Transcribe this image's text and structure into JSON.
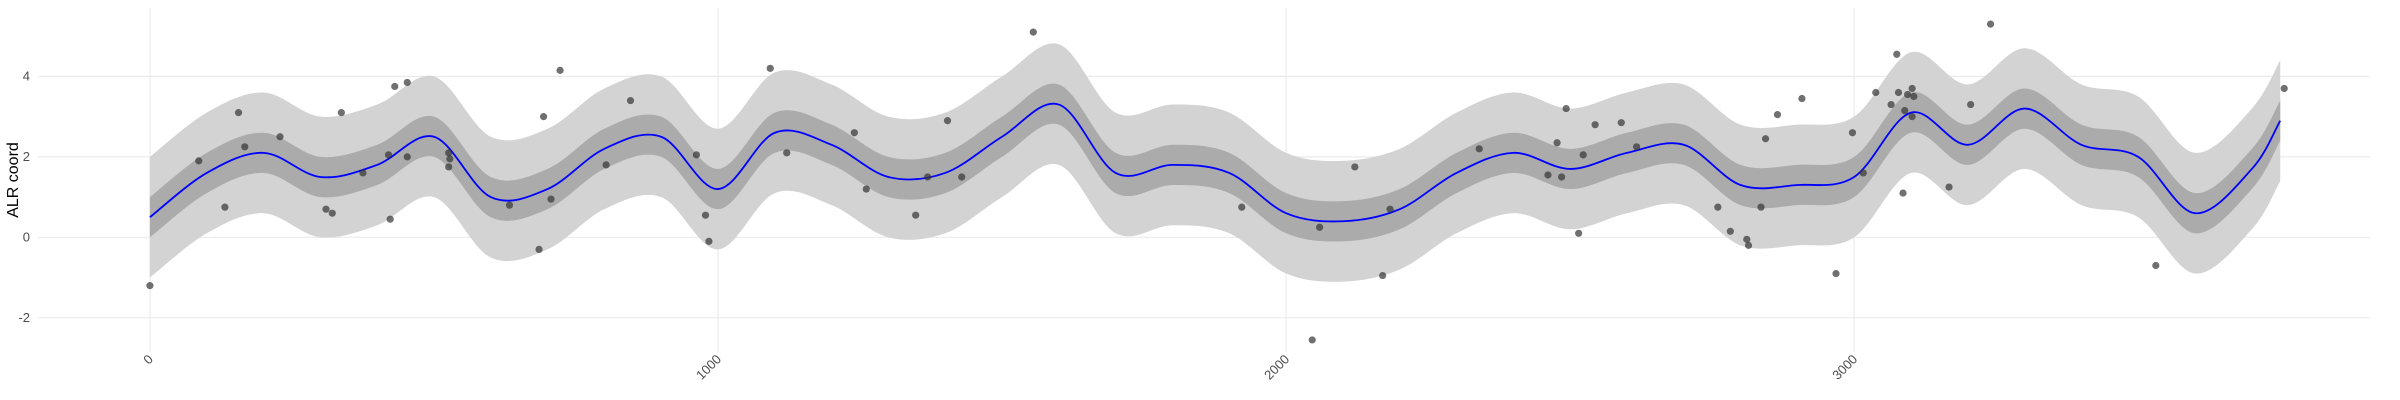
{
  "chart_data": {
    "type": "line",
    "y_label": "ALR coord",
    "x": [
      0,
      100,
      200,
      300,
      400,
      500,
      600,
      700,
      800,
      900,
      1000,
      1100,
      1200,
      1300,
      1400,
      1500,
      1600,
      1700,
      1800,
      1900,
      2000,
      2100,
      2200,
      2300,
      2400,
      2500,
      2600,
      2700,
      2800,
      2900,
      3000,
      3100,
      3200,
      3300,
      3400,
      3500,
      3600,
      3700,
      3750
    ],
    "line": {
      "color": "#0000ff",
      "values": [
        0.5,
        1.6,
        2.1,
        1.5,
        1.8,
        2.5,
        1.0,
        1.2,
        2.2,
        2.5,
        1.2,
        2.6,
        2.3,
        1.5,
        1.6,
        2.5,
        3.3,
        1.6,
        1.8,
        1.6,
        0.6,
        0.4,
        0.7,
        1.6,
        2.1,
        1.7,
        2.1,
        2.3,
        1.3,
        1.3,
        1.5,
        3.1,
        2.3,
        3.2,
        2.3,
        2.0,
        0.6,
        1.7,
        2.9
      ]
    },
    "bands": [
      {
        "color": "#d3d3d3",
        "lower": [
          -1.0,
          0.1,
          0.6,
          0.0,
          0.3,
          1.0,
          -0.5,
          -0.3,
          0.7,
          1.0,
          -0.3,
          1.1,
          0.8,
          0.0,
          0.1,
          1.0,
          1.8,
          0.1,
          0.3,
          0.1,
          -0.9,
          -1.1,
          -0.8,
          0.1,
          0.6,
          0.2,
          0.6,
          0.8,
          -0.2,
          -0.2,
          0.0,
          1.6,
          0.8,
          1.7,
          0.8,
          0.5,
          -0.9,
          0.2,
          1.4
        ],
        "upper": [
          2.0,
          3.1,
          3.6,
          3.0,
          3.3,
          4.0,
          2.5,
          2.7,
          3.7,
          4.0,
          2.7,
          4.1,
          3.8,
          3.0,
          3.1,
          4.0,
          4.8,
          3.1,
          3.3,
          3.1,
          2.1,
          1.9,
          2.2,
          3.1,
          3.6,
          3.2,
          3.6,
          3.8,
          2.8,
          2.8,
          3.0,
          4.6,
          3.8,
          4.7,
          3.8,
          3.5,
          2.1,
          3.2,
          4.4
        ]
      },
      {
        "color": "#ababab",
        "lower": [
          0.0,
          1.1,
          1.6,
          1.0,
          1.3,
          2.0,
          0.5,
          0.7,
          1.7,
          2.0,
          0.7,
          2.1,
          1.8,
          1.0,
          1.1,
          2.0,
          2.8,
          1.1,
          1.3,
          1.1,
          0.1,
          -0.1,
          0.2,
          1.1,
          1.6,
          1.2,
          1.6,
          1.8,
          0.8,
          0.8,
          1.0,
          2.6,
          1.8,
          2.7,
          1.8,
          1.5,
          0.1,
          1.2,
          2.4
        ],
        "upper": [
          1.0,
          2.1,
          2.6,
          2.0,
          2.3,
          3.0,
          1.5,
          1.7,
          2.7,
          3.0,
          1.7,
          3.1,
          2.8,
          2.0,
          2.1,
          3.0,
          3.8,
          2.1,
          2.3,
          2.1,
          1.1,
          0.9,
          1.2,
          2.1,
          2.6,
          2.2,
          2.6,
          2.8,
          1.8,
          1.8,
          2.0,
          3.6,
          2.8,
          3.7,
          2.8,
          2.5,
          1.1,
          2.2,
          3.4
        ]
      }
    ],
    "points": {
      "color": "#333333",
      "x": [
        0,
        86,
        132,
        156,
        167,
        229,
        310,
        321,
        337,
        375,
        420,
        423,
        431,
        453,
        453,
        526,
        528,
        526,
        633,
        685,
        693,
        706,
        722,
        803,
        846,
        962,
        978,
        984,
        1092,
        1121,
        1240,
        1261,
        1348,
        1369,
        1404,
        1429,
        1555,
        1922,
        2059,
        2046,
        2121,
        2170,
        2183,
        2340,
        2461,
        2477,
        2485,
        2493,
        2515,
        2523,
        2544,
        2590,
        2617,
        2760,
        2782,
        2811,
        2814,
        2836,
        2844,
        2865,
        2908,
        2968,
        2997,
        3016,
        3038,
        3065,
        3075,
        3078,
        3086,
        3089,
        3094,
        3102,
        3102,
        3105,
        3167,
        3205,
        3240,
        3531,
        3757
      ],
      "y": [
        -1.2,
        1.9,
        0.75,
        3.1,
        2.25,
        2.5,
        0.7,
        0.6,
        3.1,
        1.6,
        2.05,
        0.45,
        3.75,
        3.85,
        2.0,
        2.1,
        1.95,
        1.75,
        0.8,
        -0.3,
        3.0,
        0.95,
        4.15,
        1.8,
        3.4,
        2.05,
        0.55,
        -0.1,
        4.2,
        2.1,
        2.6,
        1.2,
        0.55,
        1.5,
        2.9,
        1.5,
        5.1,
        0.75,
        0.25,
        -2.55,
        1.75,
        -0.95,
        0.7,
        2.2,
        1.55,
        2.35,
        1.5,
        3.2,
        0.1,
        2.05,
        2.8,
        2.85,
        2.25,
        0.75,
        0.15,
        -0.05,
        -0.2,
        0.75,
        2.45,
        3.05,
        3.45,
        -0.9,
        2.6,
        1.6,
        3.6,
        3.3,
        4.55,
        3.6,
        1.1,
        3.15,
        3.55,
        3.0,
        3.7,
        3.5,
        1.25,
        3.3,
        5.3,
        -0.7,
        3.7
      ]
    },
    "xlim": [
      -197,
      3908
    ],
    "ylim": [
      -2.85,
      5.7
    ],
    "xticks": [
      0,
      1000,
      2000,
      3000
    ],
    "yticks": [
      -2,
      0,
      2,
      4
    ],
    "grid": true
  }
}
